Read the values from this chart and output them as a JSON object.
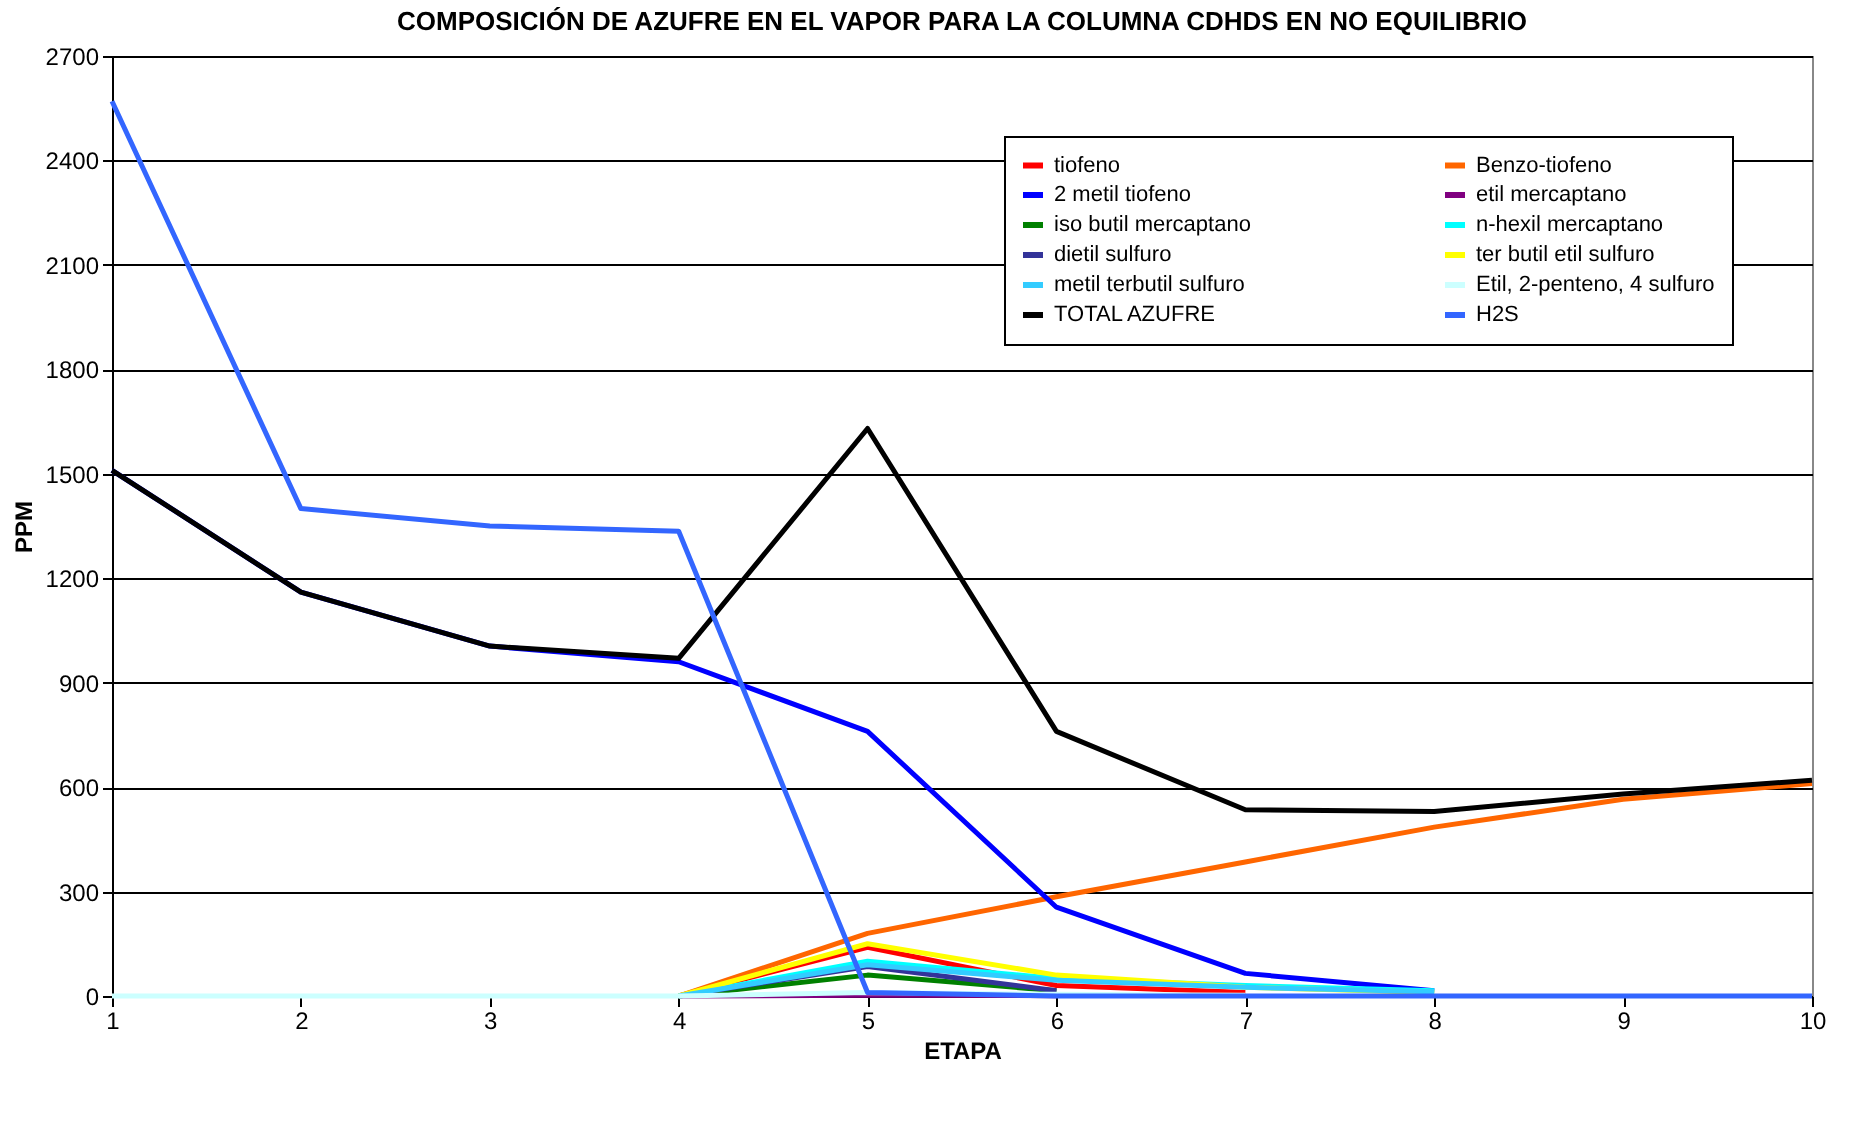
{
  "chart_data": {
    "type": "line",
    "title": "COMPOSICIÓN DE AZUFRE EN EL VAPOR PARA LA COLUMNA CDHDS EN NO EQUILIBRIO",
    "xlabel": "ETAPA",
    "ylabel": "PPM",
    "x": [
      1,
      2,
      3,
      4,
      5,
      6,
      7,
      8,
      9,
      10
    ],
    "xlim": [
      1,
      10
    ],
    "xticks": [
      1,
      2,
      3,
      4,
      5,
      6,
      7,
      8,
      9,
      10
    ],
    "ylim": [
      0,
      2700
    ],
    "yticks": [
      0,
      300,
      600,
      900,
      1200,
      1500,
      1800,
      2100,
      2400,
      2700
    ],
    "grid": "y",
    "legend": "top right",
    "marker": "none",
    "line_style": "solid",
    "series": [
      {
        "name": "tiofeno",
        "color": "#ff0000",
        "values": [
          null,
          null,
          null,
          0,
          140,
          30,
          10,
          null,
          null,
          null
        ]
      },
      {
        "name": "Benzo-tiofeno",
        "color": "#ff6600",
        "values": [
          null,
          null,
          null,
          0,
          180,
          285,
          385,
          485,
          565,
          610
        ]
      },
      {
        "name": "2 metil tiofeno",
        "color": "#0000ff",
        "values": [
          1510,
          1160,
          1005,
          960,
          760,
          255,
          65,
          15,
          null,
          null
        ]
      },
      {
        "name": "etil mercaptano",
        "color": "#800080",
        "values": [
          null,
          null,
          null,
          0,
          2,
          1,
          null,
          null,
          null,
          null
        ]
      },
      {
        "name": "iso butil mercaptano",
        "color": "#008000",
        "values": [
          null,
          null,
          null,
          0,
          60,
          15,
          null,
          null,
          null,
          null
        ]
      },
      {
        "name": "n-hexil mercaptano",
        "color": "#00ffff",
        "values": [
          null,
          null,
          null,
          0,
          100,
          50,
          30,
          15,
          null,
          null
        ]
      },
      {
        "name": "dietil sulfuro",
        "color": "#333399",
        "values": [
          null,
          null,
          null,
          0,
          85,
          15,
          null,
          null,
          null,
          null
        ]
      },
      {
        "name": "ter butil etil sulfuro",
        "color": "#ffff00",
        "values": [
          null,
          null,
          null,
          0,
          150,
          60,
          25,
          10,
          null,
          null
        ]
      },
      {
        "name": "metil terbutil sulfuro",
        "color": "#33ccff",
        "values": [
          null,
          null,
          null,
          0,
          90,
          45,
          25,
          12,
          null,
          null
        ]
      },
      {
        "name": "Etil, 2-penteno, 4 sulfuro",
        "color": "#ccffff",
        "values": [
          0,
          0,
          0,
          0,
          10,
          5,
          2,
          null,
          null,
          null
        ]
      },
      {
        "name": "TOTAL AZUFRE",
        "color": "#000000",
        "values": [
          1510,
          1160,
          1005,
          970,
          1630,
          760,
          535,
          530,
          580,
          620
        ]
      },
      {
        "name": "H2S",
        "color": "#3366ff",
        "values": [
          2570,
          1400,
          1350,
          1335,
          10,
          0,
          0,
          0,
          0,
          0
        ]
      }
    ]
  }
}
